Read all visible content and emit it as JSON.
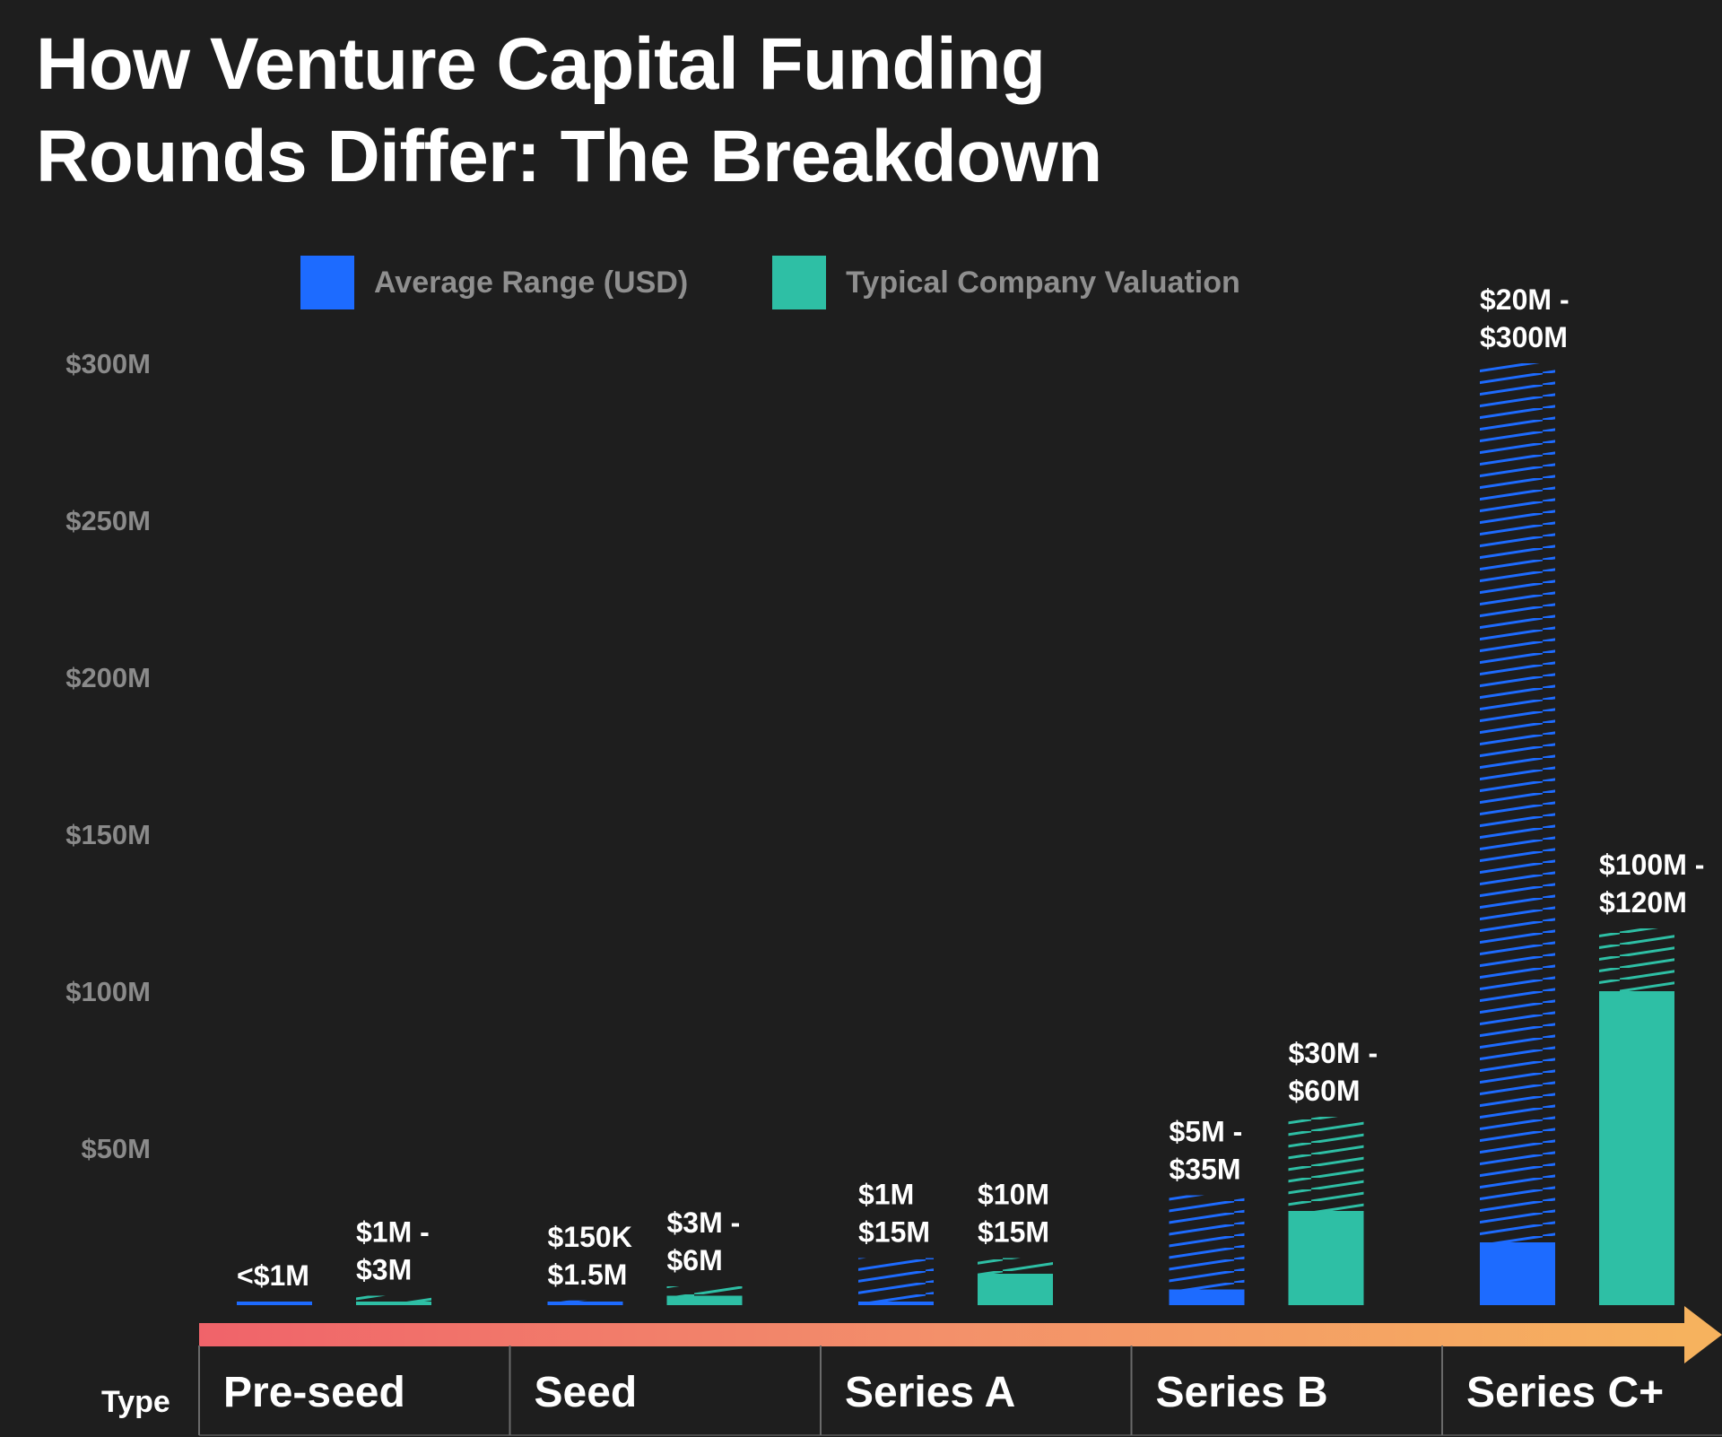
{
  "title": {
    "line1": "How Venture Capital Funding",
    "line2": "Rounds Differ: The Breakdown"
  },
  "legend": [
    {
      "label": "Average Range (USD)",
      "color": "#1d6bff"
    },
    {
      "label": "Typical Company Valuation",
      "color": "#2ebfa5"
    }
  ],
  "axis": {
    "type_label": "Type"
  },
  "chart_data": {
    "type": "bar",
    "title": "How Venture Capital Funding Rounds Differ: The Breakdown",
    "xlabel": "Type",
    "ylabel": "",
    "ylim": [
      0,
      300
    ],
    "yunit": "USD millions",
    "yticks": [
      {
        "value": 50,
        "label": "$50M"
      },
      {
        "value": 100,
        "label": "$100M"
      },
      {
        "value": 150,
        "label": "$150M"
      },
      {
        "value": 200,
        "label": "$200M"
      },
      {
        "value": 250,
        "label": "$250M"
      },
      {
        "value": 300,
        "label": "$300M"
      }
    ],
    "categories": [
      "Pre-seed",
      "Seed",
      "Series A",
      "Series B",
      "Series C+"
    ],
    "legend_position": "top",
    "grid": false,
    "series": [
      {
        "name": "Average Range (USD)",
        "color": "#1d6bff",
        "values": [
          {
            "low": 0,
            "high": 1,
            "label": [
              "<$1M"
            ]
          },
          {
            "low": 0.15,
            "high": 1.5,
            "label": [
              "$150K",
              "$1.5M"
            ]
          },
          {
            "low": 1,
            "high": 15,
            "label": [
              "$1M",
              "$15M"
            ]
          },
          {
            "low": 5,
            "high": 35,
            "label": [
              "$5M -",
              "$35M"
            ]
          },
          {
            "low": 20,
            "high": 300,
            "label": [
              "$20M -",
              "$300M"
            ]
          }
        ]
      },
      {
        "name": "Typical Company Valuation",
        "color": "#2ebfa5",
        "values": [
          {
            "low": 1,
            "high": 3,
            "label": [
              "$1M -",
              "$3M"
            ]
          },
          {
            "low": 3,
            "high": 6,
            "label": [
              "$3M -",
              "$6M"
            ]
          },
          {
            "low": 10,
            "high": 15,
            "label": [
              "$10M",
              "$15M"
            ]
          },
          {
            "low": 30,
            "high": 60,
            "label": [
              "$30M -",
              "$60M"
            ]
          },
          {
            "low": 100,
            "high": 120,
            "label": [
              "$100M -",
              "$120M"
            ]
          }
        ]
      }
    ]
  }
}
